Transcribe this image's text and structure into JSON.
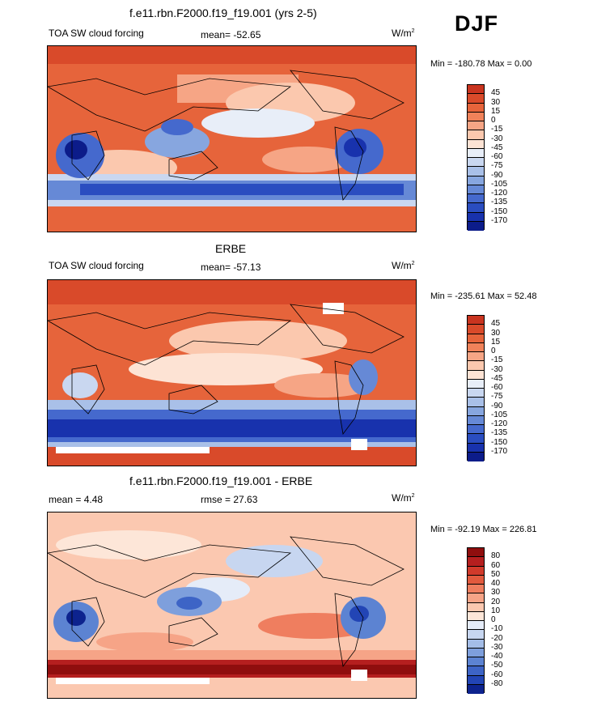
{
  "season": "DJF",
  "colors": {
    "abs_scale": [
      "#c9341f",
      "#d94a2a",
      "#e6643b",
      "#f0825a",
      "#f6a585",
      "#fbc8ae",
      "#fde3d4",
      "#e8eef8",
      "#c9d7f0",
      "#a9c0e8",
      "#87a6df",
      "#6689d6",
      "#4569cd",
      "#2a4dc0",
      "#1832ad",
      "#0c1c8a"
    ],
    "diff_scale": [
      "#8f0e0e",
      "#b51f1f",
      "#d13a2b",
      "#e25a3e",
      "#ef7e5f",
      "#f6a487",
      "#fbc8b0",
      "#fde6d8",
      "#e5ecf8",
      "#c7d6f0",
      "#a4bde7",
      "#7e9fdc",
      "#5c83d2",
      "#3d64c6",
      "#2245b5",
      "#0d238e"
    ]
  },
  "panels": [
    {
      "title": "f.e11.rbn.F2000.f19_f19.001 (yrs 2-5)",
      "variable": "TOA SW cloud forcing",
      "stat": "mean= -52.65",
      "units_base": "W/m",
      "units_exp": "2",
      "minmax": "Min = -180.78 Max =   0.00",
      "levels": [
        "45",
        "30",
        "15",
        "0",
        "-15",
        "-30",
        "-45",
        "-60",
        "-75",
        "-90",
        "-105",
        "-120",
        "-135",
        "-150",
        "-170"
      ]
    },
    {
      "title": "ERBE",
      "variable": "TOA SW cloud forcing",
      "stat": "mean= -57.13",
      "units_base": "W/m",
      "units_exp": "2",
      "minmax": "Min = -235.61 Max =  52.48",
      "levels": [
        "45",
        "30",
        "15",
        "0",
        "-15",
        "-30",
        "-45",
        "-60",
        "-75",
        "-90",
        "-105",
        "-120",
        "-135",
        "-150",
        "-170"
      ]
    },
    {
      "title": "f.e11.rbn.F2000.f19_f19.001 - ERBE",
      "variable": "mean =   4.48",
      "stat": "rmse =  27.63",
      "units_base": "W/m",
      "units_exp": "2",
      "minmax": "Min = -92.19 Max = 226.81",
      "levels": [
        "80",
        "60",
        "50",
        "40",
        "30",
        "20",
        "10",
        "0",
        "-10",
        "-20",
        "-30",
        "-40",
        "-50",
        "-60",
        "-80"
      ]
    }
  ],
  "chart_data": [
    {
      "type": "heatmap",
      "title": "f.e11.rbn.F2000.f19_f19.001 (yrs 2-5)",
      "subtitle": "TOA SW cloud forcing",
      "mean": -52.65,
      "min": -180.78,
      "max": 0.0,
      "units": "W/m2",
      "contour_levels": [
        45,
        30,
        15,
        0,
        -15,
        -30,
        -45,
        -60,
        -75,
        -90,
        -105,
        -120,
        -135,
        -150,
        -170
      ]
    },
    {
      "type": "heatmap",
      "title": "ERBE",
      "subtitle": "TOA SW cloud forcing",
      "mean": -57.13,
      "min": -235.61,
      "max": 52.48,
      "units": "W/m2",
      "contour_levels": [
        45,
        30,
        15,
        0,
        -15,
        -30,
        -45,
        -60,
        -75,
        -90,
        -105,
        -120,
        -135,
        -150,
        -170
      ]
    },
    {
      "type": "heatmap",
      "title": "f.e11.rbn.F2000.f19_f19.001 - ERBE",
      "mean": 4.48,
      "rmse": 27.63,
      "min": -92.19,
      "max": 226.81,
      "units": "W/m2",
      "contour_levels": [
        80,
        60,
        50,
        40,
        30,
        20,
        10,
        0,
        -10,
        -20,
        -30,
        -40,
        -50,
        -60,
        -80
      ]
    }
  ]
}
